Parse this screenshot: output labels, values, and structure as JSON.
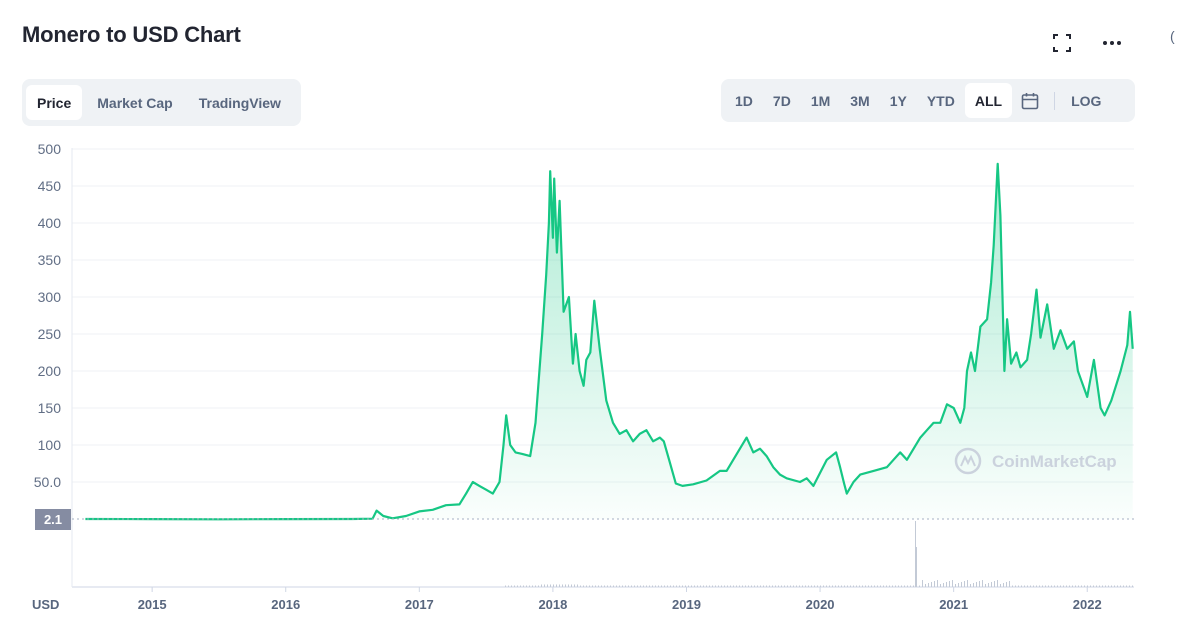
{
  "header": {
    "title": "Monero to USD Chart"
  },
  "icons": {
    "fullscreen": "fullscreen-icon",
    "more": "more-icon",
    "calendar": "calendar-icon"
  },
  "tabs": [
    {
      "label": "Price",
      "active": true
    },
    {
      "label": "Market Cap",
      "active": false
    },
    {
      "label": "TradingView",
      "active": false
    }
  ],
  "ranges": [
    {
      "label": "1D",
      "active": false
    },
    {
      "label": "7D",
      "active": false
    },
    {
      "label": "1M",
      "active": false
    },
    {
      "label": "3M",
      "active": false
    },
    {
      "label": "1Y",
      "active": false
    },
    {
      "label": "YTD",
      "active": false
    },
    {
      "label": "ALL",
      "active": true
    }
  ],
  "log_label": "LOG",
  "watermark": "CoinMarketCap",
  "colors": {
    "line": "#16c784",
    "fill": "#16c784",
    "badge": "#858ca2",
    "grid": "#eff2f5"
  },
  "chart_data": {
    "type": "line",
    "series": [
      {
        "values": [
          [
            2014.5,
            2.1
          ],
          [
            2015.0,
            2.0
          ],
          [
            2015.5,
            1.9
          ],
          [
            2016.0,
            2.0
          ],
          [
            2016.5,
            2.1
          ],
          [
            2016.65,
            2.5
          ],
          [
            2016.68,
            13
          ],
          [
            2016.73,
            6
          ],
          [
            2016.8,
            3
          ],
          [
            2016.9,
            6
          ],
          [
            2017.0,
            12
          ],
          [
            2017.1,
            14
          ],
          [
            2017.2,
            20
          ],
          [
            2017.3,
            21
          ],
          [
            2017.35,
            35
          ],
          [
            2017.4,
            50
          ],
          [
            2017.45,
            45
          ],
          [
            2017.5,
            40
          ],
          [
            2017.55,
            35
          ],
          [
            2017.6,
            50
          ],
          [
            2017.63,
            100
          ],
          [
            2017.65,
            140
          ],
          [
            2017.68,
            100
          ],
          [
            2017.72,
            90
          ],
          [
            2017.77,
            88
          ],
          [
            2017.83,
            85
          ],
          [
            2017.87,
            130
          ],
          [
            2017.92,
            250
          ],
          [
            2017.95,
            330
          ],
          [
            2017.97,
            400
          ],
          [
            2017.98,
            470
          ],
          [
            2018.0,
            380
          ],
          [
            2018.01,
            460
          ],
          [
            2018.03,
            360
          ],
          [
            2018.05,
            430
          ],
          [
            2018.08,
            280
          ],
          [
            2018.12,
            300
          ],
          [
            2018.15,
            210
          ],
          [
            2018.17,
            250
          ],
          [
            2018.2,
            200
          ],
          [
            2018.23,
            180
          ],
          [
            2018.25,
            215
          ],
          [
            2018.28,
            225
          ],
          [
            2018.31,
            295
          ],
          [
            2018.35,
            230
          ],
          [
            2018.4,
            160
          ],
          [
            2018.45,
            130
          ],
          [
            2018.5,
            115
          ],
          [
            2018.55,
            120
          ],
          [
            2018.6,
            105
          ],
          [
            2018.65,
            115
          ],
          [
            2018.7,
            120
          ],
          [
            2018.75,
            105
          ],
          [
            2018.8,
            110
          ],
          [
            2018.83,
            105
          ],
          [
            2018.87,
            80
          ],
          [
            2018.92,
            48
          ],
          [
            2018.97,
            45
          ],
          [
            2019.05,
            47
          ],
          [
            2019.15,
            52
          ],
          [
            2019.25,
            65
          ],
          [
            2019.3,
            65
          ],
          [
            2019.4,
            95
          ],
          [
            2019.45,
            110
          ],
          [
            2019.5,
            90
          ],
          [
            2019.55,
            95
          ],
          [
            2019.6,
            85
          ],
          [
            2019.65,
            70
          ],
          [
            2019.7,
            60
          ],
          [
            2019.75,
            55
          ],
          [
            2019.85,
            50
          ],
          [
            2019.9,
            55
          ],
          [
            2019.95,
            45
          ],
          [
            2020.05,
            80
          ],
          [
            2020.12,
            90
          ],
          [
            2020.15,
            70
          ],
          [
            2020.18,
            48
          ],
          [
            2020.2,
            35
          ],
          [
            2020.25,
            50
          ],
          [
            2020.3,
            60
          ],
          [
            2020.4,
            65
          ],
          [
            2020.5,
            70
          ],
          [
            2020.55,
            80
          ],
          [
            2020.6,
            90
          ],
          [
            2020.65,
            80
          ],
          [
            2020.7,
            95
          ],
          [
            2020.75,
            110
          ],
          [
            2020.8,
            120
          ],
          [
            2020.85,
            130
          ],
          [
            2020.9,
            130
          ],
          [
            2020.95,
            155
          ],
          [
            2021.0,
            150
          ],
          [
            2021.05,
            130
          ],
          [
            2021.08,
            150
          ],
          [
            2021.1,
            200
          ],
          [
            2021.13,
            225
          ],
          [
            2021.16,
            200
          ],
          [
            2021.2,
            260
          ],
          [
            2021.25,
            270
          ],
          [
            2021.28,
            320
          ],
          [
            2021.3,
            370
          ],
          [
            2021.33,
            480
          ],
          [
            2021.35,
            410
          ],
          [
            2021.38,
            200
          ],
          [
            2021.4,
            270
          ],
          [
            2021.43,
            210
          ],
          [
            2021.47,
            225
          ],
          [
            2021.5,
            205
          ],
          [
            2021.55,
            215
          ],
          [
            2021.58,
            250
          ],
          [
            2021.62,
            310
          ],
          [
            2021.65,
            245
          ],
          [
            2021.7,
            290
          ],
          [
            2021.75,
            230
          ],
          [
            2021.8,
            255
          ],
          [
            2021.85,
            230
          ],
          [
            2021.9,
            240
          ],
          [
            2021.93,
            200
          ],
          [
            2021.97,
            180
          ],
          [
            2022.0,
            165
          ],
          [
            2022.05,
            215
          ],
          [
            2022.1,
            150
          ],
          [
            2022.13,
            140
          ],
          [
            2022.18,
            160
          ],
          [
            2022.25,
            200
          ],
          [
            2022.3,
            235
          ],
          [
            2022.32,
            280
          ],
          [
            2022.34,
            230
          ]
        ]
      }
    ],
    "x_tick_labels": [
      "2015",
      "2016",
      "2017",
      "2018",
      "2019",
      "2020",
      "2021",
      "2022"
    ],
    "y_tick_labels": [
      "500",
      "450",
      "400",
      "350",
      "300",
      "250",
      "200",
      "150",
      "100",
      "50.0"
    ],
    "y_axis_unit": "USD",
    "current_price_label": "2.1",
    "xlim": [
      2014.4,
      2022.35
    ],
    "ylim": [
      2.1,
      500
    ],
    "grid": true
  }
}
